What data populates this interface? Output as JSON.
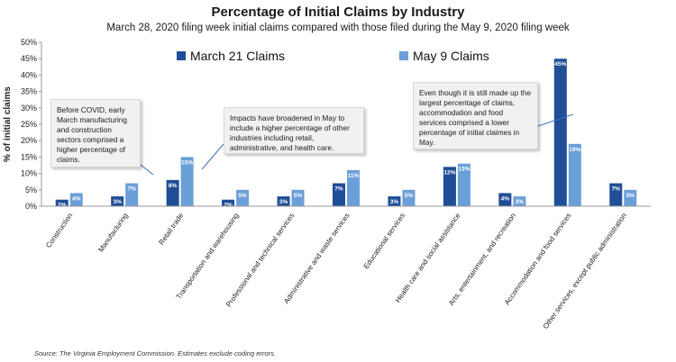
{
  "chart_data": {
    "type": "bar",
    "title": "Percentage of Initial Claims by Industry",
    "subtitle": "March 28, 2020 filing week initial claims compared with those filed during the May 9, 2020 filing week",
    "ylabel": "% of initial claims",
    "xlabel": "",
    "ylim": [
      0,
      50
    ],
    "yticks": [
      "0%",
      "5%",
      "10%",
      "15%",
      "20%",
      "25%",
      "30%",
      "35%",
      "40%",
      "45%",
      "50%"
    ],
    "grid": false,
    "legend_position": "top",
    "categories": [
      "Construction",
      "Manufacturing",
      "Retail trade",
      "Transportation and warehousing",
      "Professional and technical services",
      "Administrative and waste services",
      "Educational services",
      "Health care and social assistance",
      "Arts, entertainment, and recreation",
      "Accommodation and food services",
      "Other services, except public administration"
    ],
    "series": [
      {
        "name": "March 21 Claims",
        "color": "#1f4e97",
        "values": [
          2,
          3,
          8,
          2,
          3,
          7,
          3,
          12,
          4,
          45,
          7
        ],
        "labels": [
          "2%",
          "3%",
          "8%",
          "2%",
          "3%",
          "7%",
          "3%",
          "12%",
          "4%",
          "45%",
          "7%"
        ]
      },
      {
        "name": "May 9 Claims",
        "color": "#6b9fd8",
        "values": [
          4,
          7,
          15,
          5,
          5,
          11,
          5,
          13,
          3,
          19,
          5
        ],
        "labels": [
          "4%",
          "7%",
          "15%",
          "5%",
          "5%",
          "11%",
          "5%",
          "13%",
          "3%",
          "19%",
          "5%"
        ]
      }
    ],
    "annotations": [
      "Before COVID, early March manufacturing and construction sectors comprised a higher percentage of claims.",
      "Impacts have broadened in May to include a higher percentage of other industries including retail, administrative, and health care.",
      "Even though it is still made up the largest percentage of claims, accommodation and food services comprised a lower percentage of initial claimes in May."
    ]
  },
  "source": "Source: The Virginia Employment Commission. Estimates exclude coding errors."
}
